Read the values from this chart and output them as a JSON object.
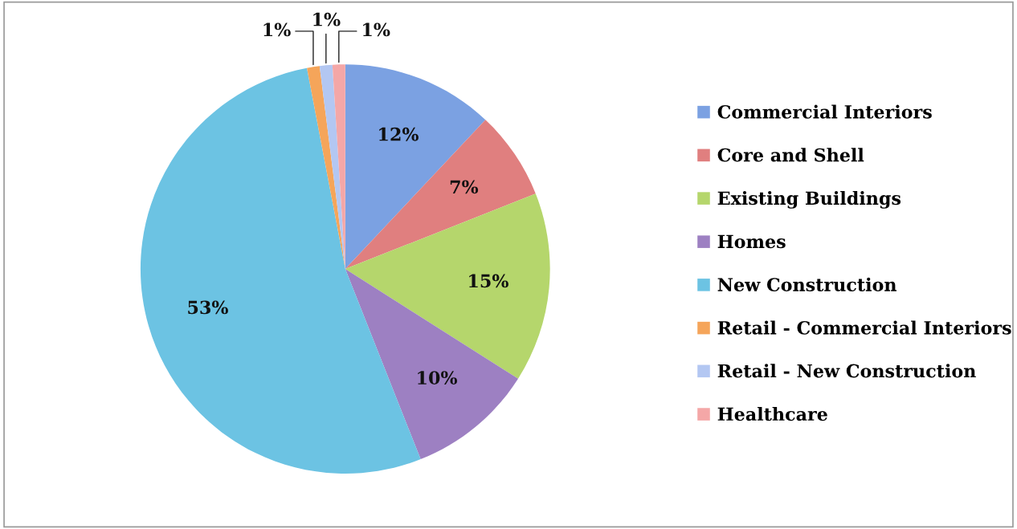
{
  "chart_data": {
    "type": "pie",
    "categories": [
      "Commercial Interiors",
      "Core and Shell",
      "Existing Buildings",
      "Homes",
      "New Construction",
      "Retail - Commercial Interiors",
      "Retail - New Construction",
      "Healthcare"
    ],
    "values": [
      12,
      7,
      15,
      10,
      53,
      1,
      1,
      1
    ],
    "value_labels": [
      "12%",
      "7%",
      "15%",
      "10%",
      "53%",
      "1%",
      "1%",
      "1%"
    ],
    "colors": [
      "#7ba1e2",
      "#e07f7f",
      "#b5d66c",
      "#9d80c2",
      "#6cc3e3",
      "#f5a55a",
      "#b3c7f2",
      "#f4a7a7"
    ],
    "legend": "right"
  }
}
